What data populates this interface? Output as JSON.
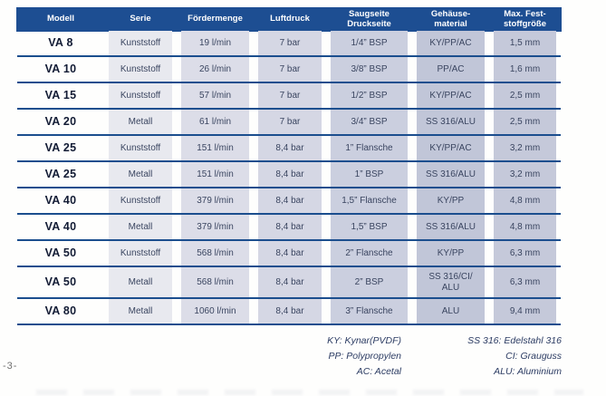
{
  "colors": {
    "header_bg": "#1d4e92",
    "row_divider": "#1b4e8e",
    "header_text": "#ffffff",
    "cell_text": "#3a4560",
    "model_text": "#131c35",
    "band_light": "#e8e9ef",
    "band_dark": "#c1c6d8",
    "legend_text": "#2c3c63"
  },
  "page": {
    "number": "-3-"
  },
  "table": {
    "headers": [
      {
        "line1": "Modell"
      },
      {
        "line1": "Serie"
      },
      {
        "line1": "Fördermenge"
      },
      {
        "line1": "Luftdruck"
      },
      {
        "line1": "Saugseite",
        "line2": "Druckseite"
      },
      {
        "line1": "Gehäuse-",
        "line2": "material"
      },
      {
        "line1": "Max. Fest-",
        "line2": "stoffgröße"
      }
    ],
    "rows": [
      {
        "model": "VA 8",
        "series": "Kunststoff",
        "flow": "19 l/min",
        "pressure": "7 bar",
        "ports": "1/4” BSP",
        "housing": "KY/PP/AC",
        "solids": "1,5 mm"
      },
      {
        "model": "VA 10",
        "series": "Kunststoff",
        "flow": "26 l/min",
        "pressure": "7 bar",
        "ports": "3/8” BSP",
        "housing": "PP/AC",
        "solids": "1,6 mm"
      },
      {
        "model": "VA 15",
        "series": "Kunststoff",
        "flow": "57 l/min",
        "pressure": "7 bar",
        "ports": "1/2” BSP",
        "housing": "KY/PP/AC",
        "solids": "2,5 mm"
      },
      {
        "model": "VA 20",
        "series": "Metall",
        "flow": "61 l/min",
        "pressure": "7 bar",
        "ports": "3/4” BSP",
        "housing": "SS 316/ALU",
        "solids": "2,5 mm"
      },
      {
        "model": "VA 25",
        "series": "Kunststoff",
        "flow": "151 l/min",
        "pressure": "8,4 bar",
        "ports": "1” Flansche",
        "housing": "KY/PP/AC",
        "solids": "3,2 mm"
      },
      {
        "model": "VA 25",
        "series": "Metall",
        "flow": "151 l/min",
        "pressure": "8,4 bar",
        "ports": "1” BSP",
        "housing": "SS 316/ALU",
        "solids": "3,2 mm"
      },
      {
        "model": "VA 40",
        "series": "Kunststoff",
        "flow": "379 l/min",
        "pressure": "8,4 bar",
        "ports": "1,5” Flansche",
        "housing": "KY/PP",
        "solids": "4,8 mm"
      },
      {
        "model": "VA 40",
        "series": "Metall",
        "flow": "379 l/min",
        "pressure": "8,4 bar",
        "ports": "1,5” BSP",
        "housing": "SS 316/ALU",
        "solids": "4,8 mm"
      },
      {
        "model": "VA 50",
        "series": "Kunststoff",
        "flow": "568 l/min",
        "pressure": "8,4 bar",
        "ports": "2” Flansche",
        "housing": "KY/PP",
        "solids": "6,3 mm"
      },
      {
        "model": "VA 50",
        "series": "Metall",
        "flow": "568 l/min",
        "pressure": "8,4 bar",
        "ports": "2” BSP",
        "housing": "SS 316/CI/\nALU",
        "solids": "6,3 mm"
      },
      {
        "model": "VA 80",
        "series": "Metall",
        "flow": "1060 l/min",
        "pressure": "8,4 bar",
        "ports": "3” Flansche",
        "housing": "ALU",
        "solids": "9,4 mm"
      }
    ]
  },
  "legend": {
    "left": [
      "KY: Kynar(PVDF)",
      "PP: Polypropylen",
      "AC: Acetal"
    ],
    "right": [
      "SS 316: Edelstahl 316",
      "CI: Grauguss",
      "ALU: Aluminium"
    ]
  }
}
